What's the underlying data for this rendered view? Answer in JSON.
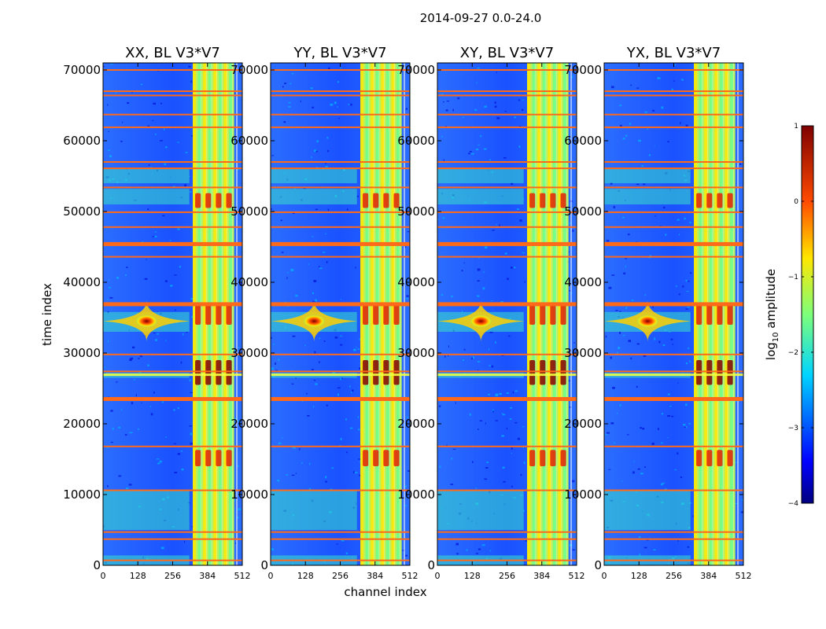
{
  "figure": {
    "suptitle": "2014-09-27 0.0-24.0",
    "xlabel": "channel index",
    "ylabel": "time index",
    "colorbar_label_prefix": "log",
    "colorbar_label_sub": "10",
    "colorbar_label_suffix": " amplitude",
    "colormap": "jet"
  },
  "chart_data": {
    "type": "heatmap",
    "panels": [
      {
        "title": "XX, BL V3*V7"
      },
      {
        "title": "YY, BL V3*V7"
      },
      {
        "title": "XY, BL V3*V7"
      },
      {
        "title": "YX, BL V3*V7"
      }
    ],
    "xlim": [
      0,
      512
    ],
    "ylim": [
      0,
      71000
    ],
    "xticks": [
      0,
      128,
      256,
      384,
      512
    ],
    "xtick_labels": [
      "0",
      "128",
      "256",
      "384",
      "512"
    ],
    "yticks": [
      0,
      10000,
      20000,
      30000,
      40000,
      50000,
      60000,
      70000
    ],
    "ytick_labels": [
      "0",
      "10000",
      "20000",
      "30000",
      "40000",
      "50000",
      "60000",
      "70000"
    ],
    "colorbar": {
      "vmin": -4,
      "vmax": 1,
      "ticks": [
        -4,
        -3,
        -2,
        -1,
        0,
        1
      ],
      "tick_labels": [
        "−4",
        "−3",
        "−2",
        "−1",
        "0",
        "1"
      ]
    },
    "flagged_time_rows": [
      700,
      3700,
      4700,
      10600,
      16800,
      23500,
      27400,
      29800,
      36900,
      43600,
      45400,
      47800,
      49900,
      53400,
      56100,
      57000,
      61900,
      63700,
      66400,
      67000,
      70000
    ],
    "high_amplitude_channel_range": [
      330,
      482
    ]
  }
}
